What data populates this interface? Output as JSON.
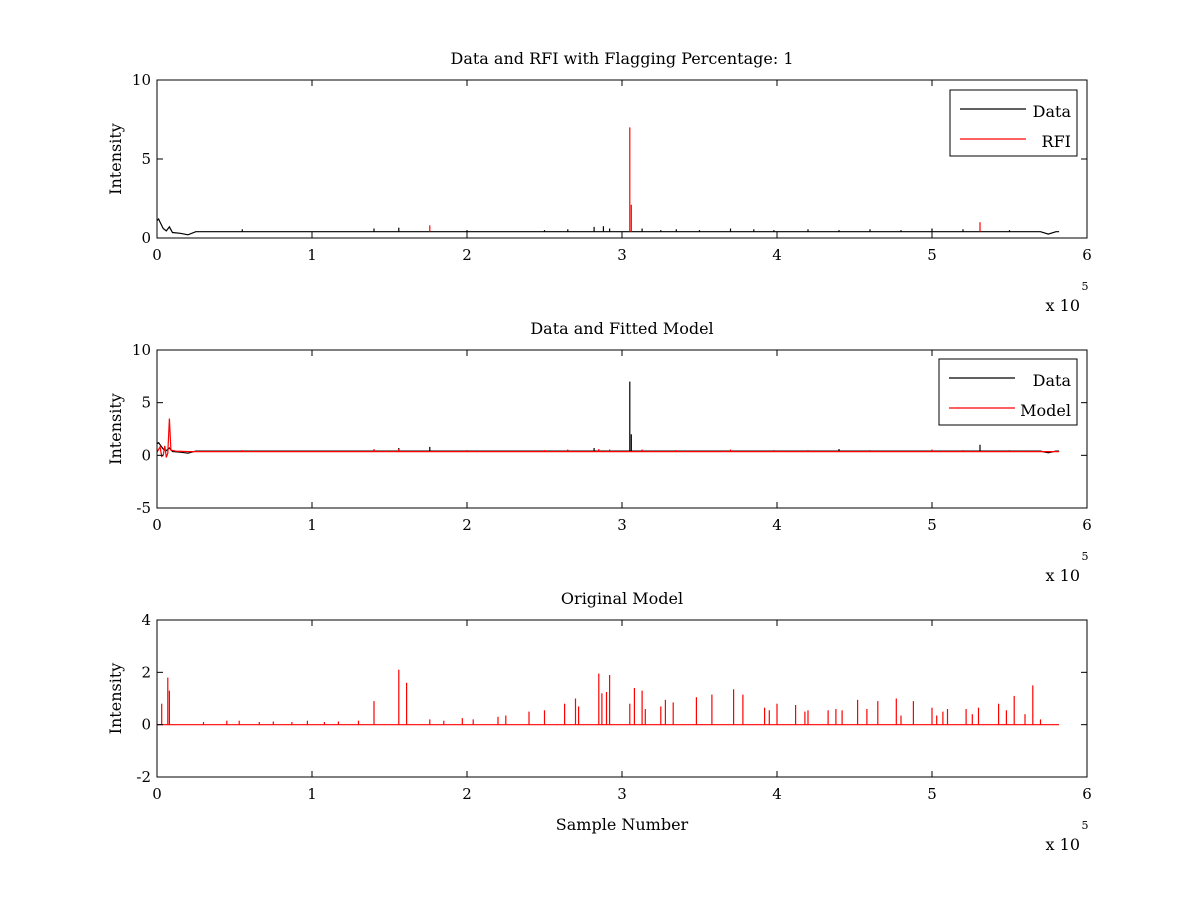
{
  "chart_data": [
    {
      "type": "line",
      "title": "Data and RFI with Flagging Percentage: 1",
      "xlabel": "",
      "ylabel": "Intensity",
      "xlim": [
        0,
        6
      ],
      "ylim": [
        0,
        10
      ],
      "x_ticks": [
        "0",
        "1",
        "2",
        "3",
        "4",
        "5",
        "6"
      ],
      "y_ticks": [
        "0",
        "5",
        "10"
      ],
      "x_multiplier": {
        "base": "x 10",
        "exponent": "5"
      },
      "legend_position": "top-right",
      "series": [
        {
          "name": "Data",
          "color": "#000000",
          "baseline": 0.4,
          "x": [
            0,
            0.01,
            0.02,
            0.04,
            0.06,
            0.08,
            0.1,
            0.15,
            0.2,
            0.25,
            5.7,
            5.75,
            5.8,
            5.82
          ],
          "y": [
            1.1,
            1.2,
            1.0,
            0.6,
            0.45,
            0.7,
            0.35,
            0.3,
            0.2,
            0.4,
            0.4,
            0.25,
            0.4,
            0.4
          ],
          "spikes": [
            [
              0.55,
              0.55
            ],
            [
              1.4,
              0.6
            ],
            [
              1.56,
              0.65
            ],
            [
              2.0,
              0.5
            ],
            [
              2.5,
              0.5
            ],
            [
              2.65,
              0.55
            ],
            [
              2.82,
              0.7
            ],
            [
              2.88,
              0.75
            ],
            [
              2.92,
              0.6
            ],
            [
              3.13,
              0.6
            ],
            [
              3.25,
              0.5
            ],
            [
              3.35,
              0.55
            ],
            [
              3.5,
              0.5
            ],
            [
              3.7,
              0.6
            ],
            [
              3.85,
              0.55
            ],
            [
              3.98,
              0.5
            ],
            [
              4.2,
              0.55
            ],
            [
              4.4,
              0.5
            ],
            [
              4.6,
              0.55
            ],
            [
              4.8,
              0.5
            ],
            [
              5.0,
              0.6
            ],
            [
              5.2,
              0.55
            ],
            [
              5.5,
              0.5
            ]
          ]
        },
        {
          "name": "RFI",
          "color": "#ff0000",
          "baseline": 0.4,
          "spikes": [
            [
              1.76,
              0.8
            ],
            [
              3.05,
              7.0
            ],
            [
              3.06,
              2.1
            ],
            [
              5.31,
              1.0
            ]
          ]
        }
      ]
    },
    {
      "type": "line",
      "title": "Data and Fitted Model",
      "xlabel": "",
      "ylabel": "Intensity",
      "xlim": [
        0,
        6
      ],
      "ylim": [
        -5,
        10
      ],
      "x_ticks": [
        "0",
        "1",
        "2",
        "3",
        "4",
        "5",
        "6"
      ],
      "y_ticks": [
        "-5",
        "0",
        "5",
        "10"
      ],
      "x_multiplier": {
        "base": "x 10",
        "exponent": "5"
      },
      "legend_position": "top-right",
      "series": [
        {
          "name": "Data",
          "color": "#000000",
          "baseline": 0.4,
          "x": [
            0,
            0.01,
            0.02,
            0.04,
            0.06,
            0.08,
            0.1,
            0.15,
            0.2,
            0.25,
            5.7,
            5.75,
            5.8,
            5.82
          ],
          "y": [
            1.1,
            1.2,
            1.0,
            0.6,
            0.45,
            0.7,
            0.35,
            0.3,
            0.2,
            0.4,
            0.4,
            0.25,
            0.4,
            0.4
          ],
          "spikes": [
            [
              1.56,
              0.7
            ],
            [
              1.76,
              0.8
            ],
            [
              2.82,
              0.7
            ],
            [
              3.05,
              7.0
            ],
            [
              3.06,
              2.0
            ],
            [
              4.4,
              0.6
            ],
            [
              5.31,
              1.0
            ]
          ]
        },
        {
          "name": "Model",
          "color": "#ff0000",
          "baseline": 0.4,
          "x": [
            0,
            0.02,
            0.03,
            0.04,
            0.05,
            0.06,
            0.07,
            0.08,
            0.09,
            0.12,
            0.2,
            5.82
          ],
          "y": [
            0.3,
            0.8,
            -0.1,
            0.0,
            0.9,
            -0.2,
            0.2,
            3.5,
            0.5,
            0.4,
            0.35,
            0.35
          ],
          "spikes": [
            [
              0.55,
              0.5
            ],
            [
              1.4,
              0.6
            ],
            [
              1.56,
              0.6
            ],
            [
              2.0,
              0.5
            ],
            [
              2.5,
              0.5
            ],
            [
              2.65,
              0.55
            ],
            [
              2.85,
              0.6
            ],
            [
              2.92,
              0.55
            ],
            [
              3.13,
              0.55
            ],
            [
              3.35,
              0.5
            ],
            [
              3.7,
              0.55
            ],
            [
              3.98,
              0.5
            ],
            [
              4.2,
              0.5
            ],
            [
              4.6,
              0.5
            ],
            [
              5.0,
              0.55
            ],
            [
              5.2,
              0.5
            ],
            [
              5.5,
              0.5
            ]
          ]
        }
      ]
    },
    {
      "type": "line",
      "title": "Original Model",
      "xlabel": "Sample Number",
      "ylabel": "Intensity",
      "xlim": [
        0,
        6
      ],
      "ylim": [
        -2,
        4
      ],
      "x_ticks": [
        "0",
        "1",
        "2",
        "3",
        "4",
        "5",
        "6"
      ],
      "y_ticks": [
        "-2",
        "0",
        "2",
        "4"
      ],
      "x_multiplier": {
        "base": "x 10",
        "exponent": "5"
      },
      "legend_position": "none",
      "series": [
        {
          "name": "",
          "color": "#ff0000",
          "baseline": 0,
          "x": [
            0,
            5.82
          ],
          "y": [
            0,
            0
          ],
          "spikes": [
            [
              0.03,
              0.8
            ],
            [
              0.07,
              1.8
            ],
            [
              0.08,
              1.3
            ],
            [
              0.3,
              0.1
            ],
            [
              0.45,
              0.15
            ],
            [
              0.53,
              0.15
            ],
            [
              0.66,
              0.1
            ],
            [
              0.75,
              0.12
            ],
            [
              0.87,
              0.1
            ],
            [
              0.97,
              0.15
            ],
            [
              1.08,
              0.1
            ],
            [
              1.17,
              0.12
            ],
            [
              1.3,
              0.15
            ],
            [
              1.4,
              0.9
            ],
            [
              1.56,
              2.1
            ],
            [
              1.61,
              1.6
            ],
            [
              1.76,
              0.2
            ],
            [
              1.85,
              0.15
            ],
            [
              1.97,
              0.25
            ],
            [
              2.04,
              0.2
            ],
            [
              2.2,
              0.3
            ],
            [
              2.25,
              0.35
            ],
            [
              2.4,
              0.5
            ],
            [
              2.5,
              0.55
            ],
            [
              2.63,
              0.8
            ],
            [
              2.7,
              1.0
            ],
            [
              2.72,
              0.7
            ],
            [
              2.85,
              1.95
            ],
            [
              2.87,
              1.2
            ],
            [
              2.9,
              1.25
            ],
            [
              2.92,
              1.9
            ],
            [
              3.05,
              0.8
            ],
            [
              3.08,
              1.4
            ],
            [
              3.13,
              1.3
            ],
            [
              3.15,
              0.6
            ],
            [
              3.25,
              0.7
            ],
            [
              3.28,
              0.95
            ],
            [
              3.33,
              0.85
            ],
            [
              3.48,
              1.05
            ],
            [
              3.58,
              1.15
            ],
            [
              3.72,
              1.35
            ],
            [
              3.78,
              1.15
            ],
            [
              3.92,
              0.65
            ],
            [
              3.95,
              0.55
            ],
            [
              4.0,
              0.8
            ],
            [
              4.12,
              0.75
            ],
            [
              4.18,
              0.5
            ],
            [
              4.2,
              0.55
            ],
            [
              4.33,
              0.55
            ],
            [
              4.38,
              0.6
            ],
            [
              4.42,
              0.55
            ],
            [
              4.52,
              0.95
            ],
            [
              4.58,
              0.6
            ],
            [
              4.65,
              0.9
            ],
            [
              4.77,
              1.0
            ],
            [
              4.8,
              0.35
            ],
            [
              4.88,
              0.9
            ],
            [
              5.0,
              0.65
            ],
            [
              5.03,
              0.35
            ],
            [
              5.07,
              0.5
            ],
            [
              5.1,
              0.6
            ],
            [
              5.22,
              0.6
            ],
            [
              5.26,
              0.4
            ],
            [
              5.3,
              0.65
            ],
            [
              5.43,
              0.8
            ],
            [
              5.48,
              0.55
            ],
            [
              5.53,
              1.1
            ],
            [
              5.6,
              0.4
            ],
            [
              5.65,
              1.5
            ],
            [
              5.7,
              0.2
            ]
          ]
        }
      ]
    }
  ]
}
